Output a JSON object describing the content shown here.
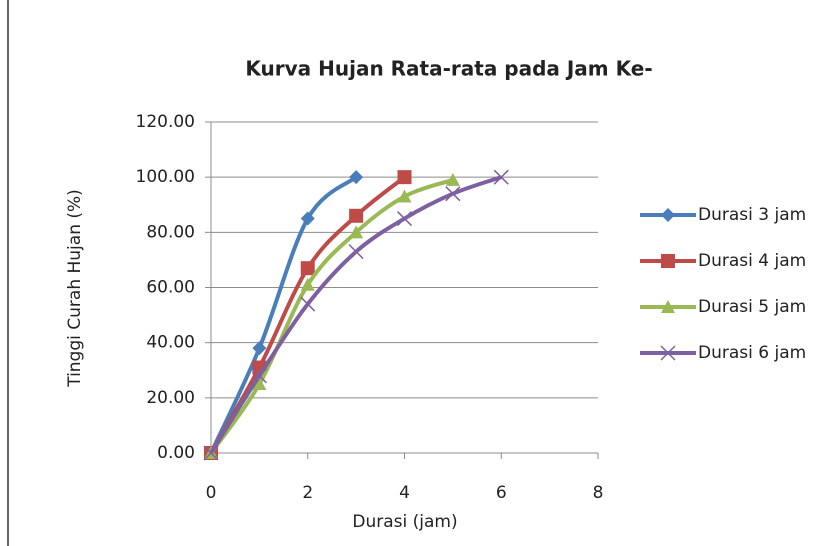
{
  "chart_data": {
    "type": "line",
    "title": "Kurva Hujan Rata-rata pada Jam Ke-",
    "x_label": "Durasi (jam)",
    "y_label": "Tinggi Curah Hujan (%)",
    "xlim": [
      0,
      8
    ],
    "xticks": [
      0,
      2,
      4,
      6,
      8
    ],
    "ylim": [
      0,
      120
    ],
    "yticks": [
      {
        "value": 0,
        "label": "0.00"
      },
      {
        "value": 20,
        "label": "20.00"
      },
      {
        "value": 40,
        "label": "40.00"
      },
      {
        "value": 60,
        "label": "60.00"
      },
      {
        "value": 80,
        "label": "80.00"
      },
      {
        "value": 100,
        "label": "100.00"
      },
      {
        "value": 120,
        "label": "120.00"
      }
    ],
    "grid": true,
    "smooth": true,
    "legend": "right",
    "series": [
      {
        "name": "Durasi 3 jam",
        "color": "#4a7ebb",
        "marker": "diamond",
        "x": [
          0,
          1,
          2,
          3
        ],
        "values": [
          0,
          38,
          85,
          100
        ]
      },
      {
        "name": "Durasi 4 jam",
        "color": "#be4b48",
        "marker": "square",
        "x": [
          0,
          1,
          2,
          3,
          4
        ],
        "values": [
          0,
          31,
          67,
          86,
          100
        ]
      },
      {
        "name": "Durasi 5 jam",
        "color": "#98b954",
        "marker": "triangle",
        "x": [
          0,
          1,
          2,
          3,
          4,
          5
        ],
        "values": [
          0,
          25,
          61,
          80,
          93,
          99
        ]
      },
      {
        "name": "Durasi 6 jam",
        "color": "#7d60a0",
        "marker": "x",
        "x": [
          0,
          1,
          2,
          3,
          4,
          5,
          6
        ],
        "values": [
          0,
          28,
          54,
          73,
          85,
          94,
          100
        ]
      }
    ]
  }
}
